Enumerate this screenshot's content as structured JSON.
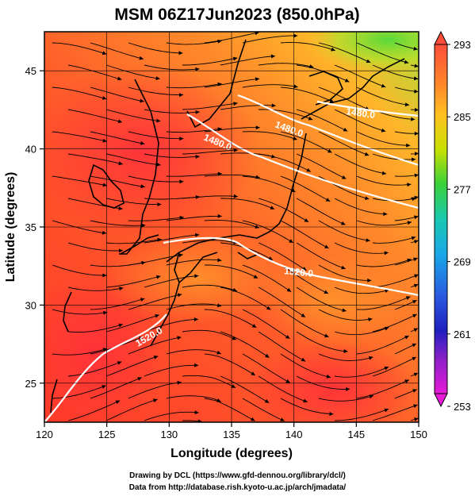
{
  "title": "MSM 06Z17Jun2023 (850.0hPa)",
  "xlabel": "Longitude (degrees)",
  "ylabel": "Latitude  (degrees)",
  "x_ticks": [
    "120",
    "125",
    "130",
    "135",
    "140",
    "145",
    "150"
  ],
  "y_ticks": [
    "25",
    "30",
    "35",
    "40",
    "45"
  ],
  "colorbar": {
    "ticks": [
      "293",
      "285",
      "277",
      "269",
      "261",
      "253"
    ],
    "colors": [
      "#ff4d3a",
      "#ff7a2a",
      "#ffb020",
      "#e8e000",
      "#9ae000",
      "#3ad23a",
      "#19c8a8",
      "#19a8e8",
      "#2a6ae0",
      "#1c30c8",
      "#5a20c0",
      "#a020c8",
      "#e81ad8"
    ]
  },
  "contours": [
    {
      "label": "1480.0"
    },
    {
      "label": "1480.0"
    },
    {
      "label": "1480.0"
    },
    {
      "label": "1520.0"
    },
    {
      "label": "1520.0"
    }
  ],
  "footer": {
    "line1": "Drawing by DCL (https://www.gfd-dennou.org/library/dcl/)",
    "line2": "Data from http://database.rish.kyoto-u.ac.jp/arch/jmadata/"
  },
  "chart_data": {
    "type": "heatmap",
    "title": "MSM 06Z17Jun2023 (850.0hPa)",
    "xlabel": "Longitude (degrees)",
    "ylabel": "Latitude  (degrees)",
    "xlim": [
      120,
      150
    ],
    "ylim": [
      22.5,
      47.5
    ],
    "color_range": [
      253,
      293
    ],
    "overlays": [
      "streamlines",
      "geopotential-height-contours",
      "coastlines"
    ],
    "contour_values": [
      1480.0,
      1520.0
    ],
    "grid": true
  }
}
